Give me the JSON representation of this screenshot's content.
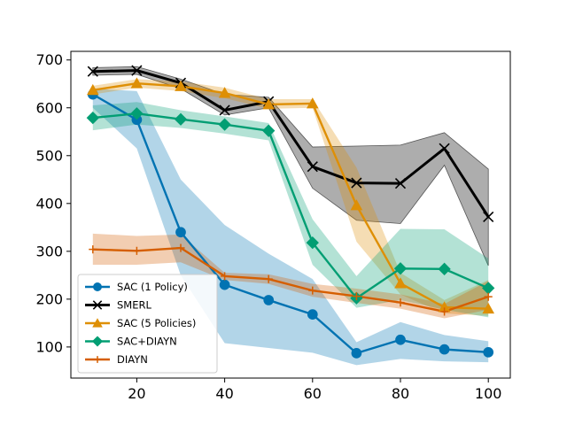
{
  "chart_data": {
    "type": "line",
    "title": "",
    "xlabel": "",
    "ylabel": "",
    "x": [
      10,
      20,
      30,
      40,
      50,
      60,
      70,
      80,
      90,
      100
    ],
    "xlim": [
      5,
      105
    ],
    "ylim": [
      35,
      718
    ],
    "xticks": [
      20,
      40,
      60,
      80,
      100
    ],
    "yticks": [
      100,
      200,
      300,
      400,
      500,
      600,
      700
    ],
    "grid": false,
    "legend_position": "lower-left",
    "series": [
      {
        "name": "SAC (1 Policy)",
        "color": "#0173b2",
        "marker": "circle",
        "values": [
          628,
          575,
          340,
          230,
          198,
          168,
          87,
          115,
          95,
          89
        ],
        "band_low": [
          600,
          515,
          250,
          108,
          98,
          88,
          62,
          75,
          70,
          68
        ],
        "band_high": [
          640,
          635,
          450,
          355,
          295,
          242,
          110,
          152,
          125,
          112
        ]
      },
      {
        "name": "SMERL",
        "color": "#000000",
        "marker": "x",
        "values": [
          676,
          678,
          652,
          595,
          613,
          477,
          443,
          442,
          515,
          372
        ],
        "band_low": [
          668,
          670,
          640,
          585,
          600,
          432,
          365,
          358,
          480,
          270
        ],
        "band_high": [
          684,
          686,
          660,
          628,
          622,
          518,
          520,
          522,
          548,
          472
        ]
      },
      {
        "name": "SAC (5 Policies)",
        "color": "#de8f05",
        "marker": "triangle",
        "values": [
          637,
          651,
          645,
          631,
          607,
          609,
          396,
          233,
          183,
          180
        ],
        "band_low": [
          628,
          642,
          635,
          620,
          598,
          600,
          320,
          210,
          170,
          165
        ],
        "band_high": [
          646,
          660,
          655,
          642,
          618,
          618,
          475,
          255,
          198,
          240
        ]
      },
      {
        "name": "SAC+DIAYN",
        "color": "#029e73",
        "marker": "diamond",
        "values": [
          579,
          588,
          576,
          565,
          552,
          318,
          202,
          264,
          263,
          223
        ],
        "band_low": [
          553,
          565,
          558,
          546,
          532,
          272,
          182,
          198,
          178,
          162
        ],
        "band_high": [
          605,
          612,
          595,
          582,
          568,
          367,
          248,
          347,
          346,
          285
        ]
      },
      {
        "name": "DIAYN",
        "color": "#d55e00",
        "marker": "plus",
        "values": [
          304,
          301,
          307,
          248,
          242,
          218,
          206,
          193,
          174,
          205
        ],
        "band_low": [
          272,
          272,
          277,
          240,
          232,
          205,
          192,
          180,
          160,
          178
        ],
        "band_high": [
          337,
          332,
          335,
          255,
          252,
          232,
          222,
          210,
          190,
          238
        ]
      }
    ]
  }
}
